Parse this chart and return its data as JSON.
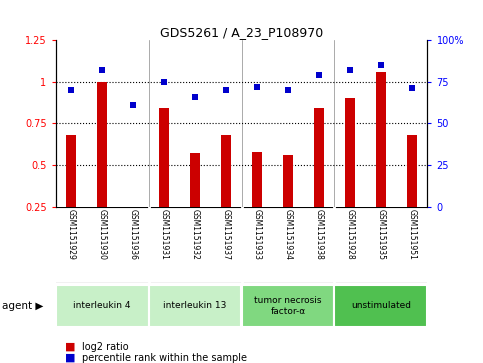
{
  "title": "GDS5261 / A_23_P108970",
  "samples": [
    "GSM1151929",
    "GSM1151930",
    "GSM1151936",
    "GSM1151931",
    "GSM1151932",
    "GSM1151937",
    "GSM1151933",
    "GSM1151934",
    "GSM1151938",
    "GSM1151928",
    "GSM1151935",
    "GSM1151951"
  ],
  "log2_ratio": [
    0.68,
    1.0,
    0.25,
    0.84,
    0.57,
    0.68,
    0.58,
    0.56,
    0.84,
    0.9,
    1.06,
    0.68
  ],
  "percentile_rank": [
    70,
    82,
    61,
    75,
    66,
    70,
    72,
    70,
    79,
    82,
    85,
    71
  ],
  "agent_groups": [
    {
      "label": "interleukin 4",
      "start": 0,
      "end": 2,
      "color": "#c8f0c8"
    },
    {
      "label": "interleukin 13",
      "start": 3,
      "end": 5,
      "color": "#c8f0c8"
    },
    {
      "label": "tumor necrosis\nfactor-α",
      "start": 6,
      "end": 8,
      "color": "#80d880"
    },
    {
      "label": "unstimulated",
      "start": 9,
      "end": 11,
      "color": "#50c050"
    }
  ],
  "group_dividers": [
    2.5,
    5.5,
    8.5
  ],
  "bar_color": "#cc0000",
  "dot_color": "#0000cc",
  "background_plot": "#ffffff",
  "background_sample": "#c8c8c8",
  "ylim_left": [
    0.25,
    1.25
  ],
  "ylim_right": [
    0,
    100
  ],
  "yticks_left": [
    0.25,
    0.5,
    0.75,
    1.0,
    1.25
  ],
  "ytick_labels_left": [
    "0.25",
    "0.5",
    "0.75",
    "1",
    "1.25"
  ],
  "yticks_right": [
    0,
    25,
    50,
    75,
    100
  ],
  "ytick_labels_right": [
    "0",
    "25",
    "50",
    "75",
    "100%"
  ],
  "dotted_lines": [
    0.5,
    0.75,
    1.0
  ],
  "bar_width": 0.35,
  "legend_log2": "log2 ratio",
  "legend_pct": "percentile rank within the sample"
}
